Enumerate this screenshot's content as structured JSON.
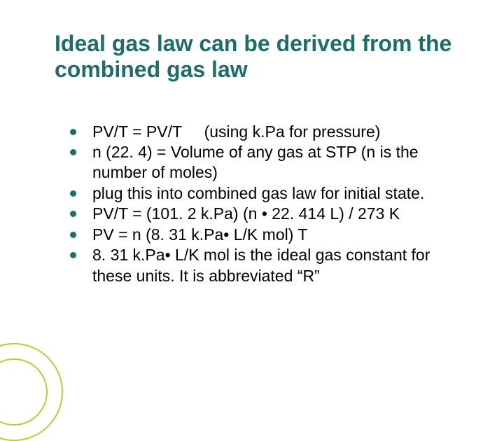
{
  "title": "Ideal gas law can be derived from the combined gas law",
  "bullets": [
    "PV/T = PV/T     (using k.Pa for pressure)",
    "n (22. 4) = Volume of any gas at STP (n is the number of moles)",
    "plug this into combined gas law for initial state.",
    "PV/T = (101. 2 k.Pa) (n • 22. 414 L) / 273 K",
    "PV = n (8. 31 k.Pa• L/K mol) T",
    "8. 31 k.Pa• L/K mol is the ideal gas constant for these units.  It is abbreviated “R”"
  ],
  "colors": {
    "title": "#1f6c6c",
    "bullet": "#1f6c6c",
    "accent": "#b9cc3a",
    "text": "#000000",
    "background": "#ffffff"
  }
}
